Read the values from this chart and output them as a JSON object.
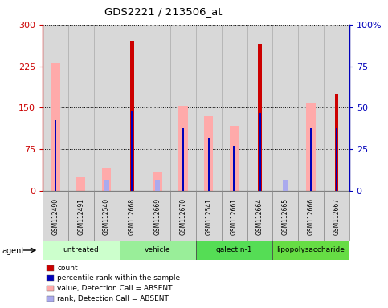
{
  "title": "GDS2221 / 213506_at",
  "samples": [
    "GSM112490",
    "GSM112491",
    "GSM112540",
    "GSM112668",
    "GSM112669",
    "GSM112670",
    "GSM112541",
    "GSM112661",
    "GSM112664",
    "GSM112665",
    "GSM112666",
    "GSM112667"
  ],
  "groups": [
    {
      "label": "untreated",
      "indices": [
        0,
        1,
        2
      ],
      "color": "#ccffcc"
    },
    {
      "label": "vehicle",
      "indices": [
        3,
        4,
        5
      ],
      "color": "#99ee99"
    },
    {
      "label": "galectin-1",
      "indices": [
        6,
        7,
        8
      ],
      "color": "#55dd55"
    },
    {
      "label": "lipopolysaccharide",
      "indices": [
        9,
        10,
        11
      ],
      "color": "#66dd44"
    }
  ],
  "count": [
    null,
    null,
    null,
    270,
    null,
    null,
    null,
    null,
    265,
    null,
    null,
    175
  ],
  "percentile_rank": [
    43,
    null,
    null,
    48,
    null,
    38,
    32,
    27,
    47,
    null,
    38,
    38
  ],
  "value_absent": [
    230,
    25,
    40,
    null,
    35,
    153,
    135,
    118,
    null,
    null,
    158,
    null
  ],
  "rank_absent": [
    null,
    null,
    7,
    null,
    7,
    null,
    null,
    null,
    null,
    7,
    null,
    null
  ],
  "ylim_left": [
    0,
    300
  ],
  "ylim_right": [
    0,
    100
  ],
  "yticks_left": [
    0,
    75,
    150,
    225,
    300
  ],
  "yticks_right": [
    0,
    25,
    50,
    75,
    100
  ],
  "color_count": "#cc0000",
  "color_percentile": "#0000bb",
  "color_value_absent": "#ffaaaa",
  "color_rank_absent": "#aaaaee",
  "agent_label": "agent",
  "legend_items": [
    {
      "label": "count",
      "color": "#cc0000"
    },
    {
      "label": "percentile rank within the sample",
      "color": "#0000bb"
    },
    {
      "label": "value, Detection Call = ABSENT",
      "color": "#ffaaaa"
    },
    {
      "label": "rank, Detection Call = ABSENT",
      "color": "#aaaaee"
    }
  ]
}
